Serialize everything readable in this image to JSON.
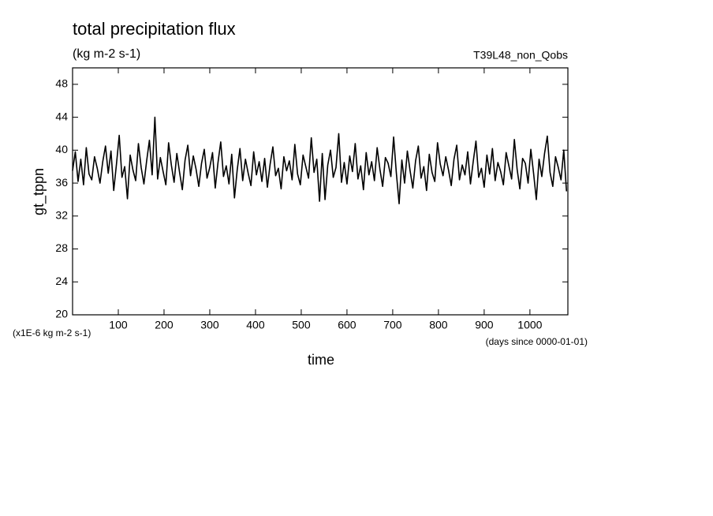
{
  "chart_data": {
    "type": "line",
    "title": "total precipitation flux",
    "subtitle": "(kg m-2 s-1)",
    "annotation": "T39L48_non_Qobs",
    "ylabel": "gt_tppn",
    "yunits": "(x1E-6 kg m-2 s-1)",
    "xlabel": "time",
    "xunits": "(days since 0000-01-01)",
    "color": "#000000",
    "xlim": [
      0,
      1083
    ],
    "ylim": [
      20,
      50
    ],
    "xticks": [
      100,
      200,
      300,
      400,
      500,
      600,
      700,
      800,
      900,
      1000
    ],
    "yticks": [
      20,
      24,
      28,
      32,
      36,
      40,
      44,
      48
    ],
    "x": [
      0,
      6,
      12,
      18,
      24,
      30,
      36,
      42,
      48,
      54,
      60,
      66,
      72,
      78,
      84,
      90,
      96,
      102,
      108,
      114,
      120,
      126,
      132,
      138,
      144,
      150,
      156,
      162,
      168,
      174,
      180,
      186,
      192,
      198,
      204,
      210,
      216,
      222,
      228,
      234,
      240,
      246,
      252,
      258,
      264,
      270,
      276,
      282,
      288,
      294,
      300,
      306,
      312,
      318,
      324,
      330,
      336,
      342,
      348,
      354,
      360,
      366,
      372,
      378,
      384,
      390,
      396,
      402,
      408,
      414,
      420,
      426,
      432,
      438,
      444,
      450,
      456,
      462,
      468,
      474,
      480,
      486,
      492,
      498,
      504,
      510,
      516,
      522,
      528,
      534,
      540,
      546,
      552,
      558,
      564,
      570,
      576,
      582,
      588,
      594,
      600,
      606,
      612,
      618,
      624,
      630,
      636,
      642,
      648,
      654,
      660,
      666,
      672,
      678,
      684,
      690,
      696,
      702,
      708,
      714,
      720,
      726,
      732,
      738,
      744,
      750,
      756,
      762,
      768,
      774,
      780,
      786,
      792,
      798,
      804,
      810,
      816,
      822,
      828,
      834,
      840,
      846,
      852,
      858,
      864,
      870,
      876,
      882,
      888,
      894,
      900,
      906,
      912,
      918,
      924,
      930,
      936,
      942,
      948,
      954,
      960,
      966,
      972,
      978,
      984,
      990,
      996,
      1002,
      1008,
      1014,
      1020,
      1026,
      1032,
      1038,
      1044,
      1050,
      1056,
      1062,
      1068,
      1074,
      1080
    ],
    "values": [
      37.5,
      39.8,
      36.2,
      38.9,
      35.8,
      40.3,
      37.1,
      36.4,
      39.2,
      37.8,
      36.0,
      38.6,
      40.5,
      37.2,
      39.9,
      35.1,
      38.3,
      41.8,
      36.7,
      38.0,
      34.1,
      39.4,
      37.6,
      36.3,
      40.8,
      37.9,
      35.9,
      38.7,
      41.2,
      37.0,
      44.0,
      36.5,
      39.1,
      37.4,
      35.8,
      40.9,
      38.2,
      36.1,
      39.6,
      37.3,
      35.2,
      38.8,
      40.6,
      36.9,
      39.3,
      37.7,
      35.6,
      38.4,
      40.1,
      36.6,
      37.9,
      39.7,
      35.4,
      38.5,
      41.0,
      36.8,
      38.1,
      35.9,
      39.5,
      34.2,
      37.6,
      40.2,
      36.3,
      38.9,
      37.2,
      35.7,
      39.8,
      37.0,
      38.6,
      36.2,
      39.0,
      35.5,
      38.3,
      40.4,
      36.9,
      37.8,
      35.3,
      39.2,
      37.5,
      38.7,
      36.4,
      40.7,
      37.1,
      35.8,
      39.4,
      38.0,
      36.6,
      41.5,
      37.3,
      38.9,
      33.8,
      39.6,
      34.0,
      38.2,
      40.0,
      36.7,
      37.9,
      42.0,
      36.1,
      38.5,
      35.9,
      39.3,
      37.4,
      40.8,
      36.5,
      38.1,
      35.2,
      39.7,
      37.0,
      38.6,
      36.3,
      40.3,
      37.7,
      35.6,
      39.1,
      38.4,
      36.8,
      41.6,
      37.2,
      33.5,
      38.8,
      36.0,
      39.9,
      37.5,
      35.4,
      38.7,
      40.5,
      36.6,
      38.0,
      35.1,
      39.5,
      37.3,
      36.2,
      40.9,
      38.3,
      36.9,
      39.2,
      37.6,
      35.7,
      38.9,
      40.6,
      36.4,
      38.2,
      37.0,
      39.8,
      35.9,
      38.6,
      41.1,
      36.7,
      37.8,
      35.5,
      39.4,
      37.1,
      40.2,
      36.3,
      38.5,
      37.4,
      35.8,
      39.7,
      38.1,
      36.5,
      41.3,
      37.7,
      35.3,
      39.0,
      38.4,
      36.0,
      40.1,
      37.2,
      34.0,
      38.9,
      36.8,
      39.6,
      41.7,
      37.3,
      35.6,
      39.2,
      37.9,
      36.4,
      40.0,
      35.0
    ]
  }
}
